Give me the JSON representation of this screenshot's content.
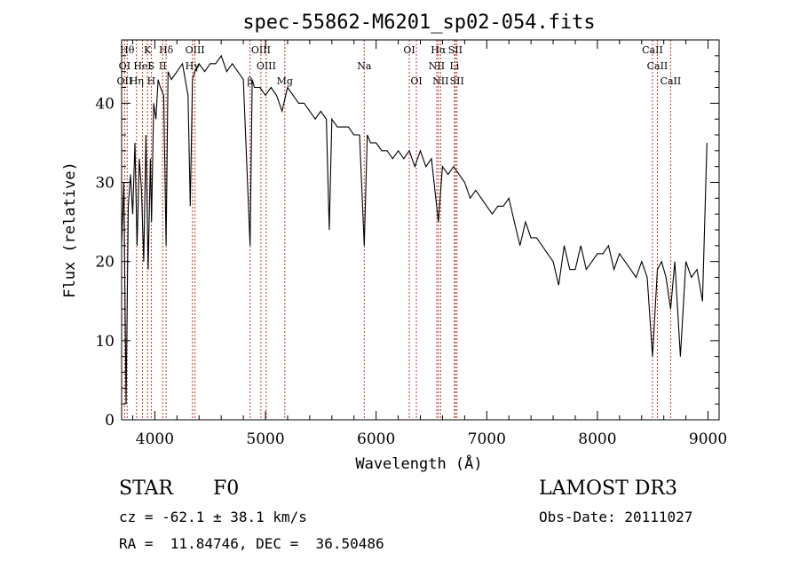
{
  "chart_data": {
    "type": "line",
    "title": "spec-55862-M6201_sp02-054.fits",
    "xlabel": "Wavelength (Å)",
    "ylabel": "Flux (relative)",
    "xlim": [
      3700,
      9100
    ],
    "ylim": [
      0,
      48
    ],
    "xticks": [
      4000,
      5000,
      6000,
      7000,
      8000,
      9000
    ],
    "yticks": [
      0,
      10,
      20,
      30,
      40
    ],
    "series": [
      {
        "name": "flux",
        "x": [
          3700,
          3720,
          3740,
          3760,
          3780,
          3800,
          3820,
          3840,
          3860,
          3880,
          3900,
          3920,
          3940,
          3960,
          3970,
          3990,
          4010,
          4030,
          4050,
          4080,
          4102,
          4120,
          4150,
          4200,
          4250,
          4300,
          4320,
          4340,
          4360,
          4400,
          4450,
          4500,
          4550,
          4600,
          4650,
          4700,
          4750,
          4800,
          4861,
          4880,
          4900,
          4950,
          5000,
          5050,
          5100,
          5150,
          5200,
          5250,
          5300,
          5350,
          5400,
          5450,
          5500,
          5550,
          5577,
          5600,
          5650,
          5700,
          5750,
          5800,
          5850,
          5893,
          5920,
          5950,
          6000,
          6050,
          6100,
          6150,
          6200,
          6250,
          6300,
          6350,
          6400,
          6450,
          6500,
          6563,
          6600,
          6650,
          6700,
          6750,
          6800,
          6850,
          6900,
          6950,
          7000,
          7050,
          7100,
          7150,
          7200,
          7250,
          7300,
          7350,
          7400,
          7450,
          7500,
          7550,
          7600,
          7650,
          7700,
          7750,
          7800,
          7850,
          7900,
          7950,
          8000,
          8050,
          8100,
          8150,
          8200,
          8250,
          8300,
          8350,
          8400,
          8450,
          8498,
          8542,
          8580,
          8620,
          8662,
          8700,
          8750,
          8800,
          8850,
          8900,
          8950,
          8990
        ],
        "y": [
          22,
          30,
          2,
          27,
          31,
          26,
          35,
          22,
          33,
          29,
          20,
          36,
          19,
          33,
          25,
          40,
          38,
          43,
          42,
          41,
          22,
          44,
          43,
          44,
          45,
          41,
          27,
          43,
          44,
          45,
          44,
          45,
          45,
          46,
          44,
          45,
          44,
          43,
          22,
          43,
          42,
          42,
          41,
          42,
          41,
          39,
          42,
          41,
          40,
          40,
          39,
          38,
          39,
          38,
          24,
          38,
          37,
          37,
          37,
          36,
          36,
          22,
          36,
          35,
          35,
          34,
          34,
          33,
          34,
          33,
          34,
          32,
          34,
          32,
          33,
          25,
          32,
          31,
          32,
          31,
          30,
          28,
          29,
          28,
          27,
          26,
          27,
          27,
          28,
          25,
          22,
          25,
          23,
          23,
          22,
          21,
          20,
          17,
          22,
          19,
          19,
          22,
          19,
          20,
          21,
          21,
          22,
          19,
          21,
          20,
          19,
          18,
          20,
          18,
          8,
          19,
          20,
          18,
          14,
          20,
          8,
          20,
          18,
          19,
          15,
          35
        ]
      }
    ],
    "lines": {
      "upper": [
        {
          "label": "Hθ",
          "x": 3750
        },
        {
          "label": "K",
          "x": 3934
        },
        {
          "label": "Hδ",
          "x": 4102
        },
        {
          "label": "OIII",
          "x": 4363
        },
        {
          "label": "OIII",
          "x": 4959
        },
        {
          "label": "OI",
          "x": 6300
        },
        {
          "label": "Hα",
          "x": 6563
        },
        {
          "label": "SII",
          "x": 6716
        },
        {
          "label": "CaII",
          "x": 8498
        }
      ],
      "middle": [
        {
          "label": "OI",
          "x": 3727
        },
        {
          "label": "HeI",
          "x": 3889
        },
        {
          "label": "S",
          "x": 3968
        },
        {
          "label": "II",
          "x": 4071
        },
        {
          "label": "Hγ",
          "x": 4340
        },
        {
          "label": "OIII",
          "x": 5007
        },
        {
          "label": "Na",
          "x": 5893
        },
        {
          "label": "NII",
          "x": 6548
        },
        {
          "label": "Li",
          "x": 6708
        },
        {
          "label": "CaII",
          "x": 8542
        }
      ],
      "lower": [
        {
          "label": "OII",
          "x": 3727
        },
        {
          "label": "Hη",
          "x": 3835
        },
        {
          "label": "H",
          "x": 3968
        },
        {
          "label": "β",
          "x": 4861
        },
        {
          "label": "Mg",
          "x": 5175
        },
        {
          "label": "OI",
          "x": 6364
        },
        {
          "label": "NII",
          "x": 6583
        },
        {
          "label": "SII",
          "x": 6731
        },
        {
          "label": "CaII",
          "x": 8662
        }
      ]
    }
  },
  "info": {
    "object_class": "STAR",
    "subclass": "F0",
    "survey": "LAMOST DR3",
    "cz": "cz = -62.1 ± 38.1 km/s",
    "obs_date": "Obs-Date: 20111027",
    "coords": "RA =  11.84746, DEC =  36.50486"
  },
  "colors": {
    "line_marker": "#c0392b",
    "spectrum": "#000000"
  }
}
